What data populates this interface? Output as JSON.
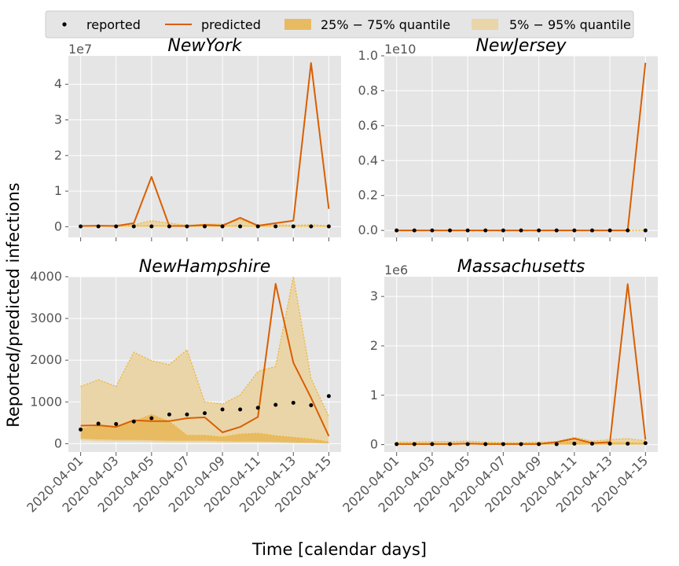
{
  "figure": {
    "xlabel": "Time [calendar days]",
    "ylabel": "Reported/predicted infections"
  },
  "legend": {
    "placement": "top-center",
    "items": [
      {
        "label": "reported",
        "kind": "dot",
        "color": "#000000"
      },
      {
        "label": "predicted",
        "kind": "line",
        "color": "#d95f02"
      },
      {
        "label": "25% − 75% quantile",
        "kind": "patch",
        "color": "#e8bb62"
      },
      {
        "label": "5% − 95% quantile",
        "kind": "patch",
        "color": "#ead5a9"
      }
    ]
  },
  "colors": {
    "predicted": "#d95f02",
    "reported": "#000000",
    "q25_75": "#e8bb62",
    "q5_95": "#ead5a9",
    "quantile_edge": "#f0b429",
    "axes_bg": "#e5e5e5",
    "grid": "#ffffff"
  },
  "chart_data": [
    {
      "type": "line",
      "title": "NewYork",
      "offset_text": "1e7",
      "x": [
        "2020-04-01",
        "2020-04-02",
        "2020-04-03",
        "2020-04-04",
        "2020-04-05",
        "2020-04-06",
        "2020-04-07",
        "2020-04-08",
        "2020-04-09",
        "2020-04-10",
        "2020-04-11",
        "2020-04-12",
        "2020-04-13",
        "2020-04-14",
        "2020-04-15"
      ],
      "xticks": [
        "2020-04-01",
        "2020-04-03",
        "2020-04-05",
        "2020-04-07",
        "2020-04-09",
        "2020-04-11",
        "2020-04-13",
        "2020-04-15"
      ],
      "show_xticklabels": false,
      "ylim": [
        -0.3,
        4.8
      ],
      "yticks": [
        0,
        1,
        2,
        3,
        4
      ],
      "yticklabels": [
        "0",
        "1",
        "2",
        "3",
        "4"
      ],
      "grid": true,
      "series": [
        {
          "name": "reported",
          "kind": "scatter",
          "values": [
            0.01,
            0.01,
            0.01,
            0.01,
            0.01,
            0.01,
            0.01,
            0.01,
            0.01,
            0.01,
            0.01,
            0.01,
            0.01,
            0.01,
            0.01
          ]
        },
        {
          "name": "predicted",
          "kind": "line",
          "values": [
            0.02,
            0.03,
            0.02,
            0.1,
            1.4,
            0.02,
            0.02,
            0.05,
            0.03,
            0.25,
            0.03,
            0.1,
            0.17,
            4.6,
            0.5
          ]
        },
        {
          "name": "5% − 95% quantile",
          "kind": "band",
          "lower": [
            0,
            0,
            0,
            0,
            0,
            0,
            0,
            0,
            0,
            0,
            0,
            0,
            0,
            0,
            0
          ],
          "upper": [
            0.02,
            0.02,
            0.04,
            0.05,
            0.17,
            0.1,
            0.04,
            0.07,
            0.07,
            0.2,
            0.02,
            0.05,
            0.04,
            0.05,
            0.03
          ]
        },
        {
          "name": "25% − 75% quantile",
          "kind": "band",
          "lower": [
            0,
            0,
            0,
            0,
            0,
            0,
            0,
            0,
            0,
            0,
            0,
            0,
            0,
            0,
            0
          ],
          "upper": [
            0.01,
            0.01,
            0.01,
            0.02,
            0.03,
            0.02,
            0.01,
            0.02,
            0.02,
            0.03,
            0.01,
            0.01,
            0.01,
            0.01,
            0.01
          ]
        }
      ]
    },
    {
      "type": "line",
      "title": "NewJersey",
      "offset_text": "1e10",
      "x": [
        "2020-04-01",
        "2020-04-02",
        "2020-04-03",
        "2020-04-04",
        "2020-04-05",
        "2020-04-06",
        "2020-04-07",
        "2020-04-08",
        "2020-04-09",
        "2020-04-10",
        "2020-04-11",
        "2020-04-12",
        "2020-04-13",
        "2020-04-14",
        "2020-04-15"
      ],
      "xticks": [
        "2020-04-01",
        "2020-04-03",
        "2020-04-05",
        "2020-04-07",
        "2020-04-09",
        "2020-04-11",
        "2020-04-13",
        "2020-04-15"
      ],
      "show_xticklabels": false,
      "ylim": [
        -0.04,
        1.0
      ],
      "yticks": [
        0.0,
        0.2,
        0.4,
        0.6,
        0.8,
        1.0
      ],
      "yticklabels": [
        "0.0",
        "0.2",
        "0.4",
        "0.6",
        "0.8",
        "1.0"
      ],
      "grid": true,
      "series": [
        {
          "name": "reported",
          "kind": "scatter",
          "values": [
            0,
            0,
            0,
            0,
            0,
            0,
            0,
            0,
            0,
            0,
            0,
            0,
            0,
            0,
            0
          ]
        },
        {
          "name": "predicted",
          "kind": "line",
          "values": [
            0,
            0,
            0,
            0,
            0,
            0,
            0,
            0,
            0,
            0,
            0,
            0,
            0,
            0,
            0.96
          ]
        },
        {
          "name": "5% − 95% quantile",
          "kind": "band",
          "lower": [
            0,
            0,
            0,
            0,
            0,
            0,
            0,
            0,
            0,
            0,
            0,
            0,
            0,
            0,
            0
          ],
          "upper": [
            0,
            0,
            0,
            0,
            0,
            0,
            0,
            0,
            0,
            0,
            0,
            0,
            0,
            0,
            0.001
          ]
        },
        {
          "name": "25% − 75% quantile",
          "kind": "band",
          "lower": [
            0,
            0,
            0,
            0,
            0,
            0,
            0,
            0,
            0,
            0,
            0,
            0,
            0,
            0,
            0
          ],
          "upper": [
            0,
            0,
            0,
            0,
            0,
            0,
            0,
            0,
            0,
            0,
            0,
            0,
            0,
            0,
            0
          ]
        }
      ]
    },
    {
      "type": "line",
      "title": "NewHampshire",
      "offset_text": "",
      "x": [
        "2020-04-01",
        "2020-04-02",
        "2020-04-03",
        "2020-04-04",
        "2020-04-05",
        "2020-04-06",
        "2020-04-07",
        "2020-04-08",
        "2020-04-09",
        "2020-04-10",
        "2020-04-11",
        "2020-04-12",
        "2020-04-13",
        "2020-04-14",
        "2020-04-15"
      ],
      "xticks": [
        "2020-04-01",
        "2020-04-03",
        "2020-04-05",
        "2020-04-07",
        "2020-04-09",
        "2020-04-11",
        "2020-04-13",
        "2020-04-15"
      ],
      "show_xticklabels": true,
      "ylim": [
        -200,
        4000
      ],
      "yticks": [
        0,
        1000,
        2000,
        3000,
        4000
      ],
      "yticklabels": [
        "0",
        "1000",
        "2000",
        "3000",
        "4000"
      ],
      "grid": true,
      "series": [
        {
          "name": "reported",
          "kind": "scatter",
          "values": [
            340,
            480,
            470,
            530,
            610,
            700,
            700,
            730,
            820,
            820,
            860,
            930,
            980,
            920,
            1140
          ]
        },
        {
          "name": "predicted",
          "kind": "line",
          "values": [
            430,
            440,
            400,
            560,
            540,
            540,
            610,
            630,
            270,
            400,
            640,
            3830,
            1940,
            1100,
            180
          ]
        },
        {
          "name": "5% − 95% quantile",
          "kind": "band",
          "lower": [
            80,
            60,
            50,
            50,
            40,
            30,
            30,
            30,
            20,
            20,
            20,
            20,
            10,
            10,
            0
          ],
          "upper": [
            1370,
            1530,
            1370,
            2190,
            1990,
            1890,
            2250,
            1000,
            950,
            1170,
            1730,
            1850,
            4000,
            1560,
            650
          ]
        },
        {
          "name": "25% − 75% quantile",
          "kind": "band",
          "lower": [
            120,
            100,
            90,
            90,
            80,
            70,
            70,
            70,
            60,
            50,
            50,
            40,
            30,
            20,
            10
          ],
          "upper": [
            360,
            420,
            400,
            530,
            700,
            530,
            200,
            200,
            160,
            230,
            250,
            190,
            150,
            110,
            40
          ]
        }
      ]
    },
    {
      "type": "line",
      "title": "Massachusetts",
      "offset_text": "1e6",
      "x": [
        "2020-04-01",
        "2020-04-02",
        "2020-04-03",
        "2020-04-04",
        "2020-04-05",
        "2020-04-06",
        "2020-04-07",
        "2020-04-08",
        "2020-04-09",
        "2020-04-10",
        "2020-04-11",
        "2020-04-12",
        "2020-04-13",
        "2020-04-14",
        "2020-04-15"
      ],
      "xticks": [
        "2020-04-01",
        "2020-04-03",
        "2020-04-05",
        "2020-04-07",
        "2020-04-09",
        "2020-04-11",
        "2020-04-13",
        "2020-04-15"
      ],
      "show_xticklabels": true,
      "ylim": [
        -0.15,
        3.4
      ],
      "yticks": [
        0,
        1,
        2,
        3
      ],
      "yticklabels": [
        "0",
        "1",
        "2",
        "3"
      ],
      "grid": true,
      "series": [
        {
          "name": "reported",
          "kind": "scatter",
          "values": [
            0.01,
            0.01,
            0.01,
            0.01,
            0.01,
            0.01,
            0.01,
            0.01,
            0.01,
            0.01,
            0.02,
            0.02,
            0.02,
            0.02,
            0.03
          ]
        },
        {
          "name": "predicted",
          "kind": "line",
          "values": [
            0.01,
            0.01,
            0.01,
            0.01,
            0.02,
            0.01,
            0.01,
            0.01,
            0.01,
            0.05,
            0.12,
            0.03,
            0.05,
            3.25,
            0.1
          ]
        },
        {
          "name": "5% − 95% quantile",
          "kind": "band",
          "lower": [
            0,
            0,
            0,
            0,
            0,
            0,
            0,
            0,
            0,
            0,
            0,
            0,
            0,
            0,
            0
          ],
          "upper": [
            0.05,
            0.05,
            0.06,
            0.06,
            0.07,
            0.05,
            0.04,
            0.04,
            0.05,
            0.06,
            0.15,
            0.07,
            0.1,
            0.12,
            0.08
          ]
        },
        {
          "name": "25% − 75% quantile",
          "kind": "band",
          "lower": [
            0,
            0,
            0,
            0,
            0,
            0,
            0,
            0,
            0,
            0,
            0,
            0,
            0,
            0,
            0
          ],
          "upper": [
            0.02,
            0.02,
            0.02,
            0.02,
            0.02,
            0.02,
            0.02,
            0.02,
            0.02,
            0.03,
            0.07,
            0.04,
            0.04,
            0.04,
            0.03
          ]
        }
      ]
    }
  ]
}
